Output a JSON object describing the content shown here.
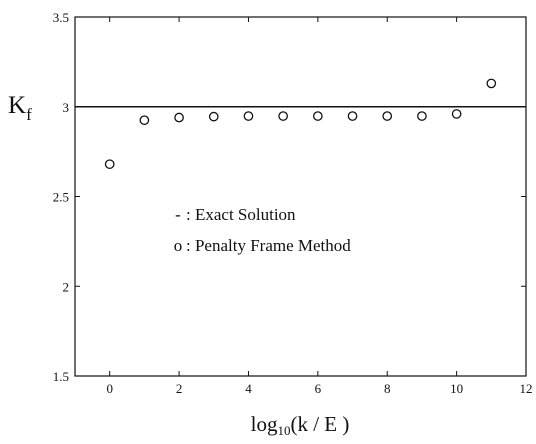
{
  "chart_data": {
    "type": "scatter",
    "title": "",
    "xlabel": {
      "prefix": "log",
      "subscript": "10",
      "suffix": "(k / E )"
    },
    "ylabel": {
      "main": "K",
      "subscript": "f"
    },
    "xlim": [
      -1,
      12
    ],
    "ylim": [
      1.5,
      3.5
    ],
    "x_ticks": [
      0,
      2,
      4,
      6,
      8,
      10,
      12
    ],
    "y_ticks": [
      1.5,
      2,
      2.5,
      3,
      3.5
    ],
    "x_tick_labels": [
      "0",
      "2",
      "4",
      "6",
      "8",
      "10",
      "12"
    ],
    "y_tick_labels": [
      "1.5",
      "2",
      "2.5",
      "3",
      "3.5"
    ],
    "grid": false,
    "series": [
      {
        "name": "Exact Solution",
        "kind": "line",
        "x": [
          -1,
          12
        ],
        "y": [
          3.0,
          3.0
        ]
      },
      {
        "name": "Penalty Frame Method",
        "kind": "scatter",
        "marker": "open-circle",
        "x": [
          0,
          1,
          2,
          3,
          4,
          5,
          6,
          7,
          8,
          9,
          10,
          11
        ],
        "y": [
          2.68,
          2.925,
          2.94,
          2.945,
          2.948,
          2.948,
          2.948,
          2.948,
          2.948,
          2.948,
          2.96,
          3.13
        ]
      }
    ],
    "legend": {
      "placement": "center-left",
      "entries": [
        {
          "symbol": "-",
          "text": ": Exact Solution"
        },
        {
          "symbol": "o",
          "text": ": Penalty Frame Method"
        }
      ]
    }
  }
}
